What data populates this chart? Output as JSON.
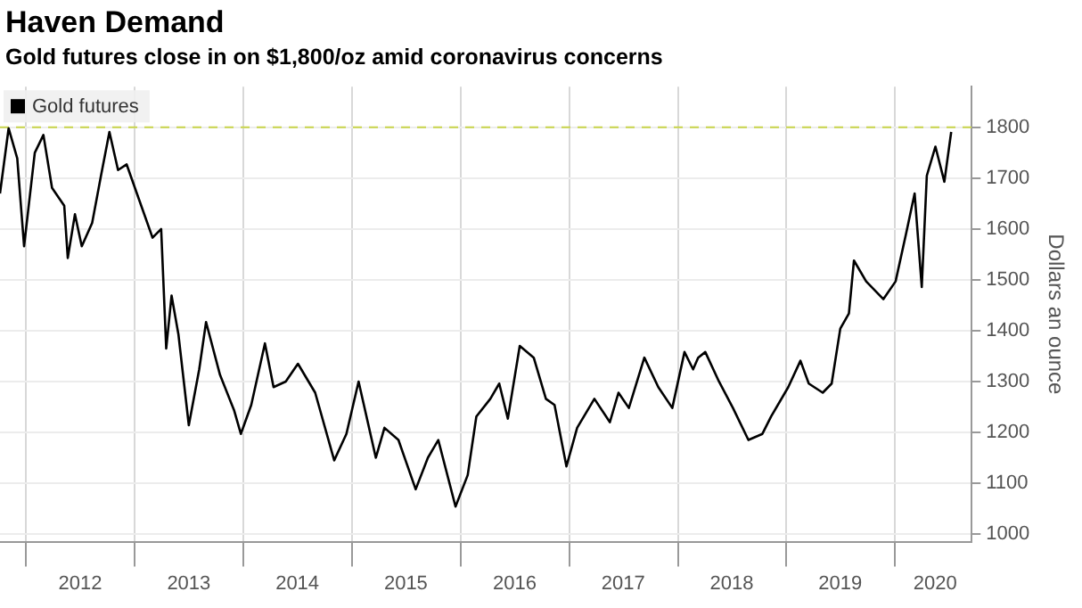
{
  "chart_data": {
    "type": "line",
    "title": "Haven Demand",
    "subtitle": "Gold futures close in on $1,800/oz amid coronavirus concerns",
    "ylabel": "Dollars an ounce",
    "x": [
      "2011-10-05",
      "2011-11-03",
      "2011-12-02",
      "2011-12-25",
      "2012-01-30",
      "2012-02-28",
      "2012-03-28",
      "2012-05-08",
      "2012-05-20",
      "2012-06-13",
      "2012-07-06",
      "2012-08-10",
      "2012-09-08",
      "2012-10-07",
      "2012-11-05",
      "2012-12-04",
      "2013-01-14",
      "2013-03-01",
      "2013-03-30",
      "2013-04-16",
      "2013-05-04",
      "2013-05-27",
      "2013-07-01",
      "2013-08-05",
      "2013-08-28",
      "2013-10-14",
      "2013-11-30",
      "2013-12-23",
      "2014-01-27",
      "2014-03-14",
      "2014-04-12",
      "2014-05-23",
      "2014-07-03",
      "2014-08-30",
      "2014-11-02",
      "2014-12-13",
      "2015-01-23",
      "2015-03-22",
      "2015-04-20",
      "2015-06-06",
      "2015-08-03",
      "2015-09-13",
      "2015-10-18",
      "2015-12-15",
      "2016-01-25",
      "2016-02-23",
      "2016-04-10",
      "2016-05-10",
      "2016-06-08",
      "2016-07-18",
      "2016-09-03",
      "2016-10-14",
      "2016-11-12",
      "2016-12-22",
      "2017-01-27",
      "2017-03-26",
      "2017-05-17",
      "2017-06-15",
      "2017-07-20",
      "2017-09-10",
      "2017-10-27",
      "2017-12-13",
      "2018-01-23",
      "2018-02-21",
      "2018-03-10",
      "2018-04-03",
      "2018-05-19",
      "2018-07-05",
      "2018-08-26",
      "2018-10-12",
      "2018-11-10",
      "2019-01-07",
      "2019-02-17",
      "2019-03-17",
      "2019-05-03",
      "2019-06-02",
      "2019-07-01",
      "2019-07-30",
      "2019-08-16",
      "2019-09-26",
      "2019-11-23",
      "2020-01-03",
      "2020-02-07",
      "2020-03-07",
      "2020-03-31",
      "2020-04-17",
      "2020-05-16",
      "2020-06-15",
      "2020-07-08"
    ],
    "series": [
      {
        "name": "Gold futures",
        "color": "#000000",
        "values": [
          1670,
          1798,
          1739,
          1566,
          1750,
          1785,
          1681,
          1646,
          1543,
          1629,
          1566,
          1612,
          1703,
          1791,
          1716,
          1727,
          1659,
          1583,
          1600,
          1365,
          1469,
          1393,
          1214,
          1324,
          1417,
          1313,
          1244,
          1197,
          1254,
          1375,
          1289,
          1300,
          1335,
          1278,
          1145,
          1197,
          1300,
          1150,
          1209,
          1185,
          1088,
          1150,
          1185,
          1054,
          1116,
          1231,
          1266,
          1296,
          1227,
          1370,
          1347,
          1266,
          1254,
          1133,
          1209,
          1266,
          1220,
          1278,
          1248,
          1347,
          1289,
          1248,
          1358,
          1324,
          1347,
          1358,
          1300,
          1248,
          1185,
          1197,
          1231,
          1289,
          1341,
          1296,
          1278,
          1296,
          1404,
          1434,
          1538,
          1497,
          1462,
          1497,
          1590,
          1670,
          1486,
          1705,
          1762,
          1693,
          1791
        ]
      }
    ],
    "xlim": [
      "2011-10-05",
      "2020-09-15"
    ],
    "xticks": [
      {
        "value": "2012-01-01",
        "label": null
      },
      {
        "value": "2012-07-01",
        "label": "2012"
      },
      {
        "value": "2013-01-01",
        "label": null
      },
      {
        "value": "2013-07-01",
        "label": "2013"
      },
      {
        "value": "2014-01-01",
        "label": null
      },
      {
        "value": "2014-07-01",
        "label": "2014"
      },
      {
        "value": "2015-01-01",
        "label": null
      },
      {
        "value": "2015-07-01",
        "label": "2015"
      },
      {
        "value": "2016-01-01",
        "label": null
      },
      {
        "value": "2016-07-01",
        "label": "2016"
      },
      {
        "value": "2017-01-01",
        "label": null
      },
      {
        "value": "2017-07-01",
        "label": "2017"
      },
      {
        "value": "2018-01-01",
        "label": null
      },
      {
        "value": "2018-07-01",
        "label": "2018"
      },
      {
        "value": "2019-01-01",
        "label": null
      },
      {
        "value": "2019-07-01",
        "label": "2019"
      },
      {
        "value": "2020-01-01",
        "label": null
      },
      {
        "value": "2020-05-15",
        "label": "2020"
      }
    ],
    "ylim": [
      985,
      1880
    ],
    "yticks": [
      1000,
      1100,
      1200,
      1300,
      1400,
      1500,
      1600,
      1700,
      1800
    ],
    "ref_lines": [
      {
        "axis": "y",
        "value": 1800,
        "color": "#c8d44a",
        "line_style": "dashed"
      }
    ],
    "grid": true,
    "legend": "top left",
    "marker": "none",
    "line_style": "solid"
  }
}
